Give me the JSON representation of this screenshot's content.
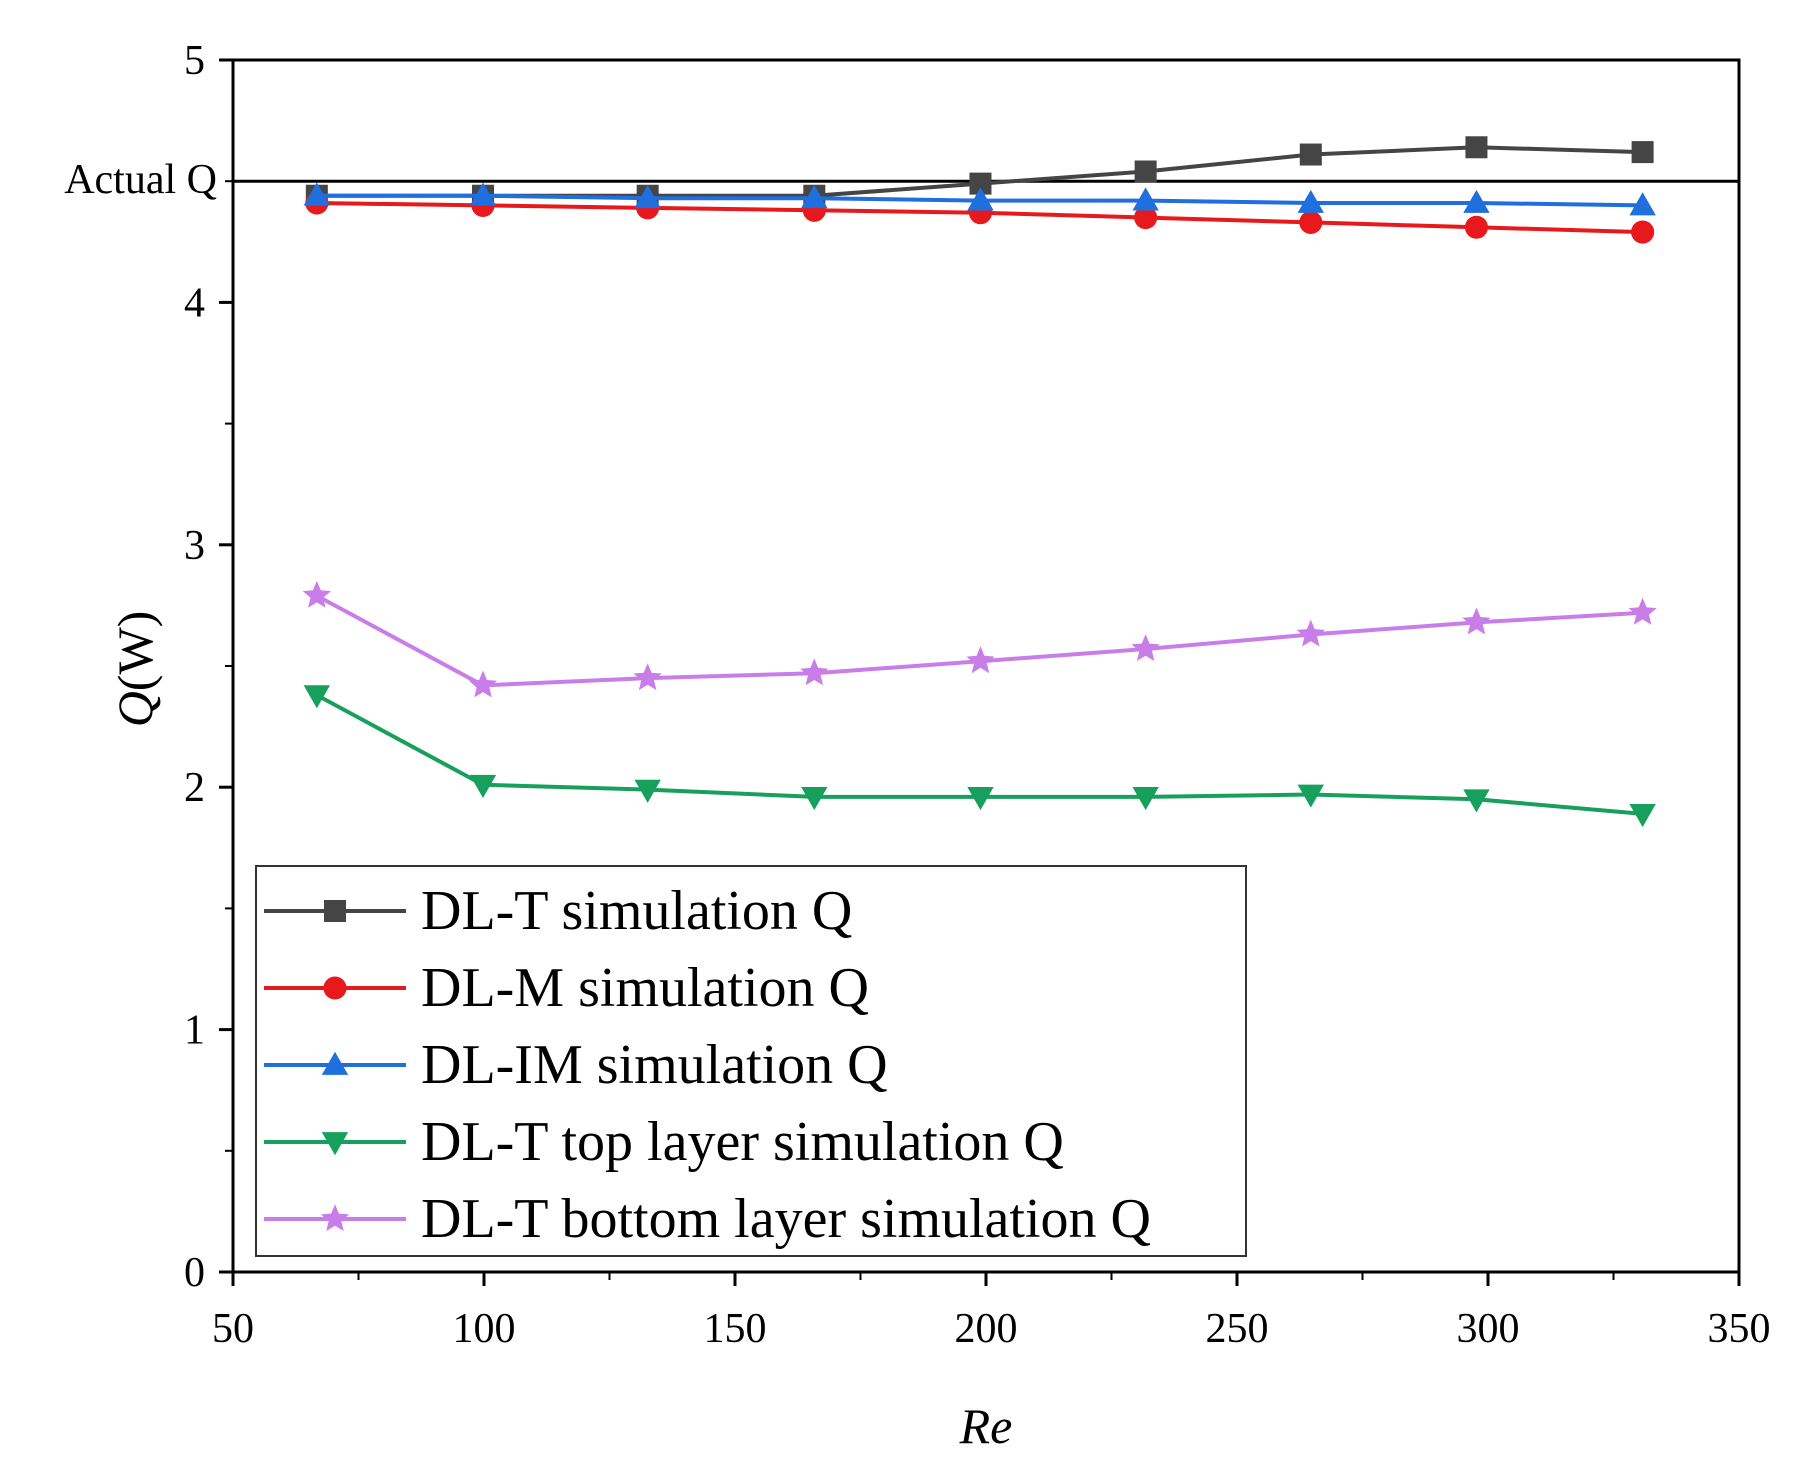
{
  "chart_data": {
    "type": "line",
    "title": "",
    "xlabel": "Re",
    "ylabel_main": "Q",
    "ylabel_unit": "(W)",
    "xlim": [
      50,
      350
    ],
    "ylim": [
      0,
      5
    ],
    "x_ticks": [
      50,
      100,
      150,
      200,
      250,
      300,
      350
    ],
    "y_ticks": [
      0,
      1,
      2,
      3,
      4,
      5
    ],
    "grid": false,
    "legend_position": "bottom-left",
    "x": [
      66.7,
      99.8,
      132.6,
      165.8,
      198.9,
      231.8,
      264.7,
      297.7,
      330.8
    ],
    "reference_line": {
      "label": "Actual Q",
      "value": 4.5
    },
    "series": [
      {
        "name": "DL-T simulation Q",
        "color": "#454545",
        "marker": "square",
        "values": [
          4.44,
          4.44,
          4.44,
          4.44,
          4.49,
          4.54,
          4.61,
          4.64,
          4.62
        ]
      },
      {
        "name": "DL-M simulation Q",
        "color": "#e8191c",
        "marker": "circle",
        "values": [
          4.41,
          4.4,
          4.39,
          4.38,
          4.37,
          4.35,
          4.33,
          4.31,
          4.29
        ]
      },
      {
        "name": "DL-IM simulation Q",
        "color": "#1f6fde",
        "marker": "triangle-up",
        "values": [
          4.44,
          4.44,
          4.43,
          4.43,
          4.42,
          4.42,
          4.41,
          4.41,
          4.4
        ]
      },
      {
        "name": "DL-T top layer simulation Q",
        "color": "#17a05c",
        "marker": "triangle-down",
        "values": [
          2.38,
          2.01,
          1.99,
          1.96,
          1.96,
          1.96,
          1.97,
          1.95,
          1.89
        ]
      },
      {
        "name": "DL-T bottom layer simulation Q",
        "color": "#c97de8",
        "marker": "star",
        "values": [
          2.79,
          2.42,
          2.45,
          2.47,
          2.52,
          2.57,
          2.63,
          2.68,
          2.72
        ]
      }
    ]
  }
}
